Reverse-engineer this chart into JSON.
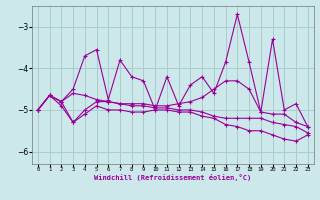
{
  "xlabel": "Windchill (Refroidissement éolien,°C)",
  "background_color": "#cce8ea",
  "grid_color": "#aacccc",
  "line_color": "#990099",
  "x": [
    0,
    1,
    2,
    3,
    4,
    5,
    6,
    7,
    8,
    9,
    10,
    11,
    12,
    13,
    14,
    15,
    16,
    17,
    18,
    19,
    20,
    21,
    22,
    23
  ],
  "line1": [
    -5.0,
    -4.65,
    -4.8,
    -4.5,
    -3.7,
    -3.55,
    -4.75,
    -3.8,
    -4.2,
    -4.3,
    -5.0,
    -4.2,
    -4.9,
    -4.4,
    -4.2,
    -4.6,
    -3.85,
    -2.7,
    -3.85,
    -5.05,
    -3.3,
    -5.0,
    -4.85,
    -5.4
  ],
  "line2": [
    -5.0,
    -4.65,
    -4.8,
    -4.6,
    -4.65,
    -4.75,
    -4.8,
    -4.85,
    -4.85,
    -4.85,
    -4.9,
    -4.9,
    -4.85,
    -4.8,
    -4.7,
    -4.5,
    -4.3,
    -4.3,
    -4.5,
    -5.05,
    -5.1,
    -5.1,
    -5.3,
    -5.4
  ],
  "line3": [
    -5.0,
    -4.65,
    -4.8,
    -5.3,
    -5.0,
    -4.8,
    -4.8,
    -4.85,
    -4.9,
    -4.9,
    -4.95,
    -4.95,
    -5.0,
    -5.0,
    -5.05,
    -5.15,
    -5.2,
    -5.2,
    -5.2,
    -5.2,
    -5.3,
    -5.35,
    -5.4,
    -5.55
  ],
  "line4": [
    -5.0,
    -4.65,
    -4.9,
    -5.3,
    -5.1,
    -4.9,
    -5.0,
    -5.0,
    -5.05,
    -5.05,
    -5.0,
    -5.0,
    -5.05,
    -5.05,
    -5.15,
    -5.2,
    -5.35,
    -5.4,
    -5.5,
    -5.5,
    -5.6,
    -5.7,
    -5.75,
    -5.6
  ],
  "ylim": [
    -6.3,
    -2.5
  ],
  "yticks": [
    -6,
    -5,
    -4,
    -3
  ],
  "xlim": [
    -0.5,
    23.5
  ]
}
